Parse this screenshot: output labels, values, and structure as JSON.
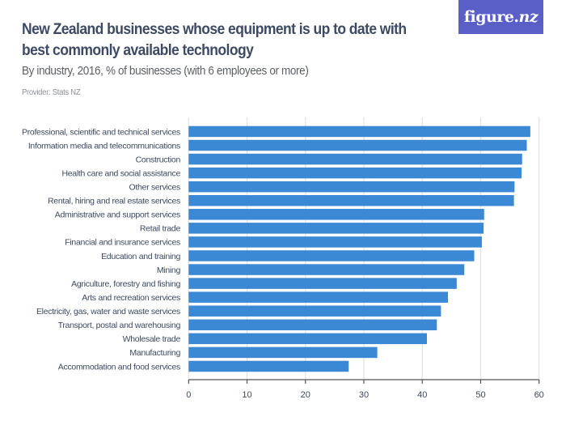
{
  "header": {
    "title": "New Zealand businesses whose equipment is up to date with best commonly available technology",
    "subtitle": "By industry, 2016, % of businesses (with 6 employees or more)",
    "provider": "Provider: Stats NZ"
  },
  "logo": {
    "text_main": "figure.",
    "text_italic": "nz",
    "background_color": "#5a5fc8"
  },
  "colors": {
    "bar": "#3b88d4",
    "gridline": "#e2e2e2",
    "axis": "#555555",
    "text": "#3c4a63"
  },
  "chart_data": {
    "type": "bar",
    "orientation": "horizontal",
    "title": "New Zealand businesses whose equipment is up to date with best commonly available technology",
    "subtitle": "By industry, 2016, % of businesses (with 6 employees or more)",
    "xlabel": "",
    "ylabel": "",
    "xlim": [
      0,
      60
    ],
    "ticks": [
      0,
      10,
      20,
      30,
      40,
      50,
      60
    ],
    "grid": true,
    "categories": [
      "Professional, scientific and technical services",
      "Information media and telecommunications",
      "Construction",
      "Health care and social assistance",
      "Other services",
      "Rental, hiring and real estate services",
      "Administrative and support services",
      "Retail trade",
      "Financial and insurance services",
      "Education and training",
      "Mining",
      "Agriculture, forestry and fishing",
      "Arts and recreation services",
      "Electricity, gas, water and waste services",
      "Transport, postal and warehousing",
      "Wholesale trade",
      "Manufacturing",
      "Accommodation and food services"
    ],
    "values": [
      58.5,
      57.9,
      57.1,
      57.0,
      55.8,
      55.7,
      50.6,
      50.5,
      50.2,
      48.9,
      47.2,
      45.9,
      44.4,
      43.2,
      42.5,
      40.8,
      32.3,
      27.4
    ]
  }
}
